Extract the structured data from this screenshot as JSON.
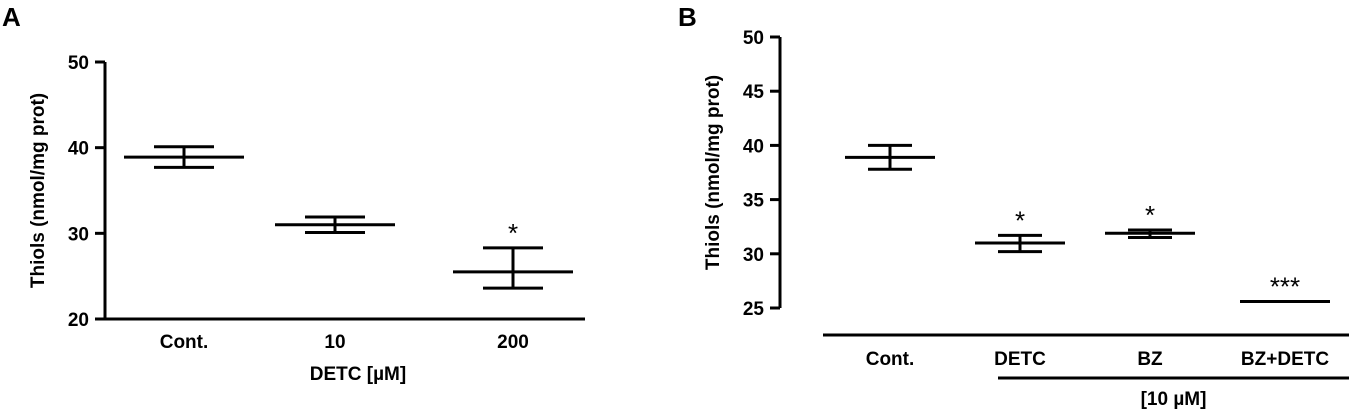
{
  "chart_data": [
    {
      "panel": "A",
      "type": "scatter",
      "ylabel": "Thiols (nmol/mg prot)",
      "xlabel": "DETC [µM]",
      "ylim": [
        20,
        50
      ],
      "yticks": [
        20,
        30,
        40,
        50
      ],
      "categories": [
        "Cont.",
        "10",
        "200"
      ],
      "series": [
        {
          "means": [
            38.9,
            31.0,
            25.5
          ],
          "upper": [
            40.1,
            31.9,
            28.3
          ],
          "lower": [
            37.7,
            30.1,
            23.6
          ],
          "annotations": [
            "",
            "",
            "*"
          ]
        }
      ]
    },
    {
      "panel": "B",
      "type": "scatter",
      "ylabel": "Thiols (nmol/mg prot)",
      "group_label": "[10 µM]",
      "ylim": [
        25,
        50
      ],
      "yticks": [
        25,
        30,
        35,
        40,
        45,
        50
      ],
      "categories": [
        "Cont.",
        "DETC",
        "BZ",
        "BZ+DETC"
      ],
      "series": [
        {
          "means": [
            38.9,
            31.0,
            31.9,
            25.6
          ],
          "upper": [
            40.0,
            31.7,
            32.2,
            25.6
          ],
          "lower": [
            37.8,
            30.2,
            31.5,
            25.6
          ],
          "annotations": [
            "",
            "*",
            "*",
            "***"
          ]
        }
      ]
    }
  ]
}
